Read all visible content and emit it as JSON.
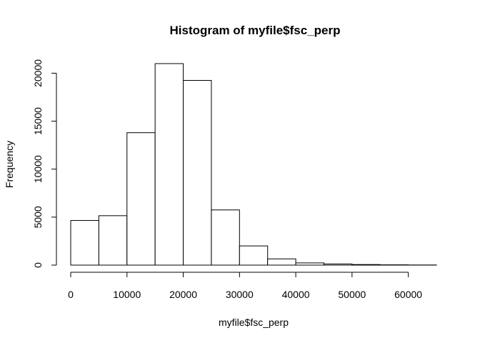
{
  "chart_data": {
    "type": "bar",
    "title": "Histogram of myfile$fsc_perp",
    "xlabel": "myfile$fsc_perp",
    "ylabel": "Frequency",
    "bins": [
      {
        "start": 0,
        "end": 5000,
        "count": 4650
      },
      {
        "start": 5000,
        "end": 10000,
        "count": 5150
      },
      {
        "start": 10000,
        "end": 15000,
        "count": 13800
      },
      {
        "start": 15000,
        "end": 20000,
        "count": 21000
      },
      {
        "start": 20000,
        "end": 25000,
        "count": 19250
      },
      {
        "start": 25000,
        "end": 30000,
        "count": 5750
      },
      {
        "start": 30000,
        "end": 35000,
        "count": 2000
      },
      {
        "start": 35000,
        "end": 40000,
        "count": 650
      },
      {
        "start": 40000,
        "end": 45000,
        "count": 230
      },
      {
        "start": 45000,
        "end": 50000,
        "count": 120
      },
      {
        "start": 50000,
        "end": 55000,
        "count": 60
      },
      {
        "start": 55000,
        "end": 60000,
        "count": 30
      },
      {
        "start": 60000,
        "end": 65000,
        "count": 15
      }
    ],
    "xlim": [
      0,
      65000
    ],
    "ylim": [
      0,
      21000
    ],
    "x_ticks": [
      0,
      10000,
      20000,
      30000,
      40000,
      50000,
      60000
    ],
    "y_ticks": [
      0,
      5000,
      10000,
      15000,
      20000
    ],
    "x_tick_labels": [
      "0",
      "10000",
      "20000",
      "30000",
      "40000",
      "50000",
      "60000"
    ],
    "y_tick_labels": [
      "0",
      "5000",
      "10000",
      "15000",
      "20000"
    ],
    "grid": false,
    "legend": "none"
  }
}
